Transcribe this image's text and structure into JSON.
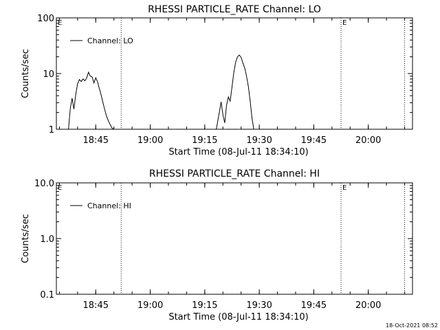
{
  "footer": {
    "timestamp": "18-Oct-2021 08:52"
  },
  "chart_data": [
    {
      "type": "line",
      "title": "RHESSI PARTICLE_RATE Channel: LO",
      "xlabel": "Start Time (08-Jul-11 18:34:10)",
      "ylabel": "Counts/sec",
      "y_scale": "log",
      "ylim": [
        1,
        100
      ],
      "y_ticks": [
        1,
        10,
        100
      ],
      "y_tick_labels": [
        "1",
        "10",
        "100"
      ],
      "xlim": [
        "18:34:10",
        "20:12:10"
      ],
      "x_ticks": [
        "18:45",
        "19:00",
        "19:15",
        "19:30",
        "19:45",
        "20:00"
      ],
      "x_tick_labels": [
        "18:45",
        "19:00",
        "19:15",
        "19:30",
        "19:45",
        "20:00"
      ],
      "legend": {
        "position": "top-left",
        "entries": [
          "Channel: LO"
        ]
      },
      "markers": [
        {
          "x": "18:52:00",
          "label": ""
        },
        {
          "x": "19:52:30",
          "label": "E"
        },
        {
          "x": "20:10:00",
          "label": ""
        }
      ],
      "edge_labels": [
        {
          "x": "18:34:10",
          "label": "E"
        }
      ],
      "series": [
        {
          "name": "Channel: LO",
          "segments": [
            {
              "x": [
                "18:37:30",
                "18:38:00",
                "18:38:30",
                "18:39:00",
                "18:39:30",
                "18:40:00",
                "18:40:30",
                "18:41:00",
                "18:41:30",
                "18:42:00",
                "18:42:30",
                "18:43:00",
                "18:43:30",
                "18:44:00",
                "18:44:30",
                "18:45:00",
                "18:45:30",
                "18:46:00",
                "18:46:30",
                "18:47:00",
                "18:47:30",
                "18:48:00",
                "18:48:30",
                "18:49:00",
                "18:49:30",
                "18:50:00"
              ],
              "y": [
                1.0,
                2.4,
                3.6,
                2.3,
                4.2,
                6.5,
                7.8,
                7.2,
                8.0,
                7.4,
                8.3,
                10.6,
                9.0,
                8.7,
                6.8,
                8.4,
                7.1,
                5.4,
                4.1,
                3.0,
                2.2,
                1.7,
                1.4,
                1.2,
                1.05,
                1.0
              ]
            },
            {
              "x": [
                "19:18:10",
                "19:19:00",
                "19:19:30",
                "19:20:00",
                "19:20:30",
                "19:21:00",
                "19:21:30",
                "19:22:00",
                "19:22:30",
                "19:23:00",
                "19:23:30",
                "19:24:00",
                "19:24:30",
                "19:25:00",
                "19:25:30",
                "19:26:00",
                "19:26:30",
                "19:27:00",
                "19:27:30",
                "19:28:00",
                "19:28:30"
              ],
              "y": [
                1.0,
                2.0,
                3.1,
                1.8,
                1.3,
                2.7,
                3.8,
                3.2,
                5.8,
                10.5,
                16.0,
                20.0,
                21.5,
                19.5,
                15.5,
                12.5,
                9.0,
                5.8,
                3.2,
                1.6,
                1.0
              ]
            }
          ]
        }
      ]
    },
    {
      "type": "line",
      "title": "RHESSI PARTICLE_RATE Channel: HI",
      "xlabel": "Start Time (08-Jul-11 18:34:10)",
      "ylabel": "Counts/sec",
      "y_scale": "log",
      "ylim": [
        0.1,
        10.0
      ],
      "y_ticks": [
        0.1,
        1.0,
        10.0
      ],
      "y_tick_labels": [
        "0.1",
        "1.0",
        "10.0"
      ],
      "xlim": [
        "18:34:10",
        "20:12:10"
      ],
      "x_ticks": [
        "18:45",
        "19:00",
        "19:15",
        "19:30",
        "19:45",
        "20:00"
      ],
      "x_tick_labels": [
        "18:45",
        "19:00",
        "19:15",
        "19:30",
        "19:45",
        "20:00"
      ],
      "legend": {
        "position": "top-left",
        "entries": [
          "Channel: HI"
        ]
      },
      "markers": [
        {
          "x": "18:52:00",
          "label": ""
        },
        {
          "x": "19:52:30",
          "label": "E"
        },
        {
          "x": "20:10:00",
          "label": ""
        }
      ],
      "edge_labels": [
        {
          "x": "18:34:10",
          "label": "E"
        }
      ],
      "series": [
        {
          "name": "Channel: HI",
          "segments": []
        }
      ]
    }
  ]
}
